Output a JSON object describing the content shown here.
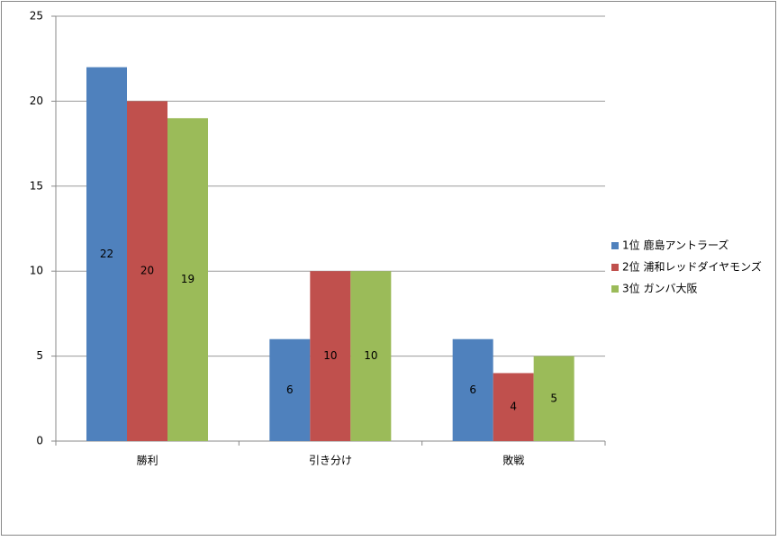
{
  "chart_data": {
    "type": "bar",
    "categories": [
      "勝利",
      "引き分け",
      "敗戦"
    ],
    "series": [
      {
        "name": "1位 鹿島アントラーズ",
        "color": "#4f81bd",
        "values": [
          22,
          6,
          6
        ]
      },
      {
        "name": "2位 浦和レッドダイヤモンズ",
        "color": "#c0504d",
        "values": [
          20,
          10,
          4
        ]
      },
      {
        "name": "3位 ガンバ大阪",
        "color": "#9bbb59",
        "values": [
          19,
          10,
          5
        ]
      }
    ],
    "ylim": [
      0,
      25
    ],
    "yticks": [
      0,
      5,
      10,
      15,
      20,
      25
    ],
    "grid": true,
    "legend": "right"
  }
}
